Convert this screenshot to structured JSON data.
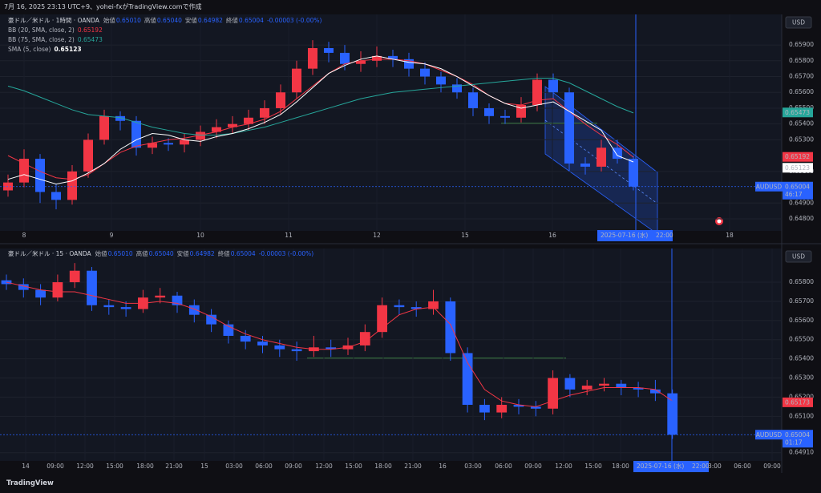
{
  "header": {
    "text": "7月 16, 2025 23:13 UTC+9、yohei-fxがTradingView.comで作成"
  },
  "footer": {
    "brand": "TradingView"
  },
  "chart_data": [
    {
      "type": "candlestick",
      "title": "豪ドル／米ドル · 1時間 · OANDA",
      "legend_values": [
        [
          "始値",
          "0.65010"
        ],
        [
          "高値",
          "0.65040"
        ],
        [
          "安値",
          "0.64982"
        ],
        [
          "終値",
          "0.65004"
        ]
      ],
      "change": "-0.00003 (-0.00%)",
      "currency": "USD",
      "up_color": "#f23645",
      "down_color": "#2962ff",
      "x_labels": [
        "8",
        "9",
        "10",
        "11",
        "12",
        "15",
        "16",
        "18"
      ],
      "ylim": [
        0.64724,
        0.66093
      ],
      "yticks": [
        {
          "value": 0.648,
          "label": "0.64800"
        },
        {
          "value": 0.649,
          "label": "0.64900"
        },
        {
          "value": 0.651,
          "label": "0.65100"
        },
        {
          "value": 0.653,
          "label": "0.65300"
        },
        {
          "value": 0.654,
          "label": "0.65400"
        },
        {
          "value": 0.655,
          "label": "0.65500"
        },
        {
          "value": 0.656,
          "label": "0.65600"
        },
        {
          "value": 0.657,
          "label": "0.65700"
        },
        {
          "value": 0.658,
          "label": "0.65800"
        },
        {
          "value": 0.659,
          "label": "0.65900"
        }
      ],
      "open": [
        0.6498,
        0.6503,
        0.6518,
        0.6497,
        0.6492,
        0.651,
        0.653,
        0.6545,
        0.6542,
        0.6525,
        0.6528,
        0.6527,
        0.653,
        0.6535,
        0.6538,
        0.654,
        0.6544,
        0.655,
        0.656,
        0.6575,
        0.6588,
        0.6585,
        0.6578,
        0.658,
        0.6583,
        0.6581,
        0.6575,
        0.657,
        0.6565,
        0.656,
        0.655,
        0.6545,
        0.6544,
        0.6552,
        0.6568,
        0.656,
        0.6515,
        0.6513,
        0.6525,
        0.6518
      ],
      "high": [
        0.6508,
        0.6524,
        0.6521,
        0.6502,
        0.6514,
        0.6534,
        0.6549,
        0.6548,
        0.6545,
        0.6532,
        0.6531,
        0.6534,
        0.6539,
        0.6543,
        0.6545,
        0.6549,
        0.6555,
        0.6565,
        0.658,
        0.6593,
        0.6592,
        0.659,
        0.6586,
        0.6589,
        0.6587,
        0.6585,
        0.6579,
        0.6573,
        0.6569,
        0.6563,
        0.6553,
        0.6549,
        0.6557,
        0.6572,
        0.6572,
        0.6563,
        0.6519,
        0.653,
        0.653,
        0.652
      ],
      "low": [
        0.6494,
        0.65,
        0.649,
        0.6486,
        0.6489,
        0.6506,
        0.6527,
        0.6536,
        0.652,
        0.6521,
        0.6523,
        0.6522,
        0.6526,
        0.6531,
        0.6534,
        0.6536,
        0.654,
        0.6546,
        0.6556,
        0.6571,
        0.6579,
        0.6574,
        0.6573,
        0.6576,
        0.6576,
        0.657,
        0.6565,
        0.656,
        0.6556,
        0.6545,
        0.654,
        0.654,
        0.6541,
        0.6548,
        0.6556,
        0.651,
        0.6508,
        0.651,
        0.6515,
        0.6498
      ],
      "close": [
        0.6503,
        0.6518,
        0.6497,
        0.6492,
        0.651,
        0.653,
        0.6545,
        0.6542,
        0.6525,
        0.6528,
        0.6527,
        0.653,
        0.6535,
        0.6538,
        0.654,
        0.6544,
        0.655,
        0.656,
        0.6575,
        0.6588,
        0.6585,
        0.6578,
        0.658,
        0.6583,
        0.6581,
        0.6575,
        0.657,
        0.6565,
        0.656,
        0.655,
        0.6545,
        0.6544,
        0.6552,
        0.6568,
        0.656,
        0.6515,
        0.6513,
        0.6525,
        0.6518,
        0.65004
      ],
      "series": [
        {
          "name": "BB (20, SMA, close, 2)",
          "color": "#f23645",
          "last_value": 0.65192,
          "values": [
            0.652,
            0.6515,
            0.651,
            0.6506,
            0.6505,
            0.6508,
            0.6515,
            0.6522,
            0.6526,
            0.6528,
            0.653,
            0.6531,
            0.6533,
            0.6535,
            0.6538,
            0.654,
            0.6543,
            0.6548,
            0.6556,
            0.6564,
            0.6572,
            0.6578,
            0.658,
            0.6581,
            0.6581,
            0.658,
            0.6578,
            0.6574,
            0.657,
            0.6565,
            0.6558,
            0.6553,
            0.6552,
            0.6555,
            0.6556,
            0.6548,
            0.654,
            0.6533,
            0.6527,
            0.6519
          ]
        },
        {
          "name": "BB (75, SMA, close, 2)",
          "color": "#26a69a",
          "last_value": 0.65473,
          "values": [
            0.6564,
            0.6561,
            0.6557,
            0.6553,
            0.6549,
            0.6546,
            0.6545,
            0.6544,
            0.6541,
            0.6538,
            0.6536,
            0.6534,
            0.6533,
            0.6533,
            0.6534,
            0.6536,
            0.6538,
            0.6541,
            0.6544,
            0.6547,
            0.655,
            0.6553,
            0.6556,
            0.6558,
            0.656,
            0.6561,
            0.6562,
            0.6563,
            0.6564,
            0.6565,
            0.6566,
            0.6567,
            0.6568,
            0.6569,
            0.6569,
            0.6566,
            0.6561,
            0.6556,
            0.6551,
            0.6547
          ]
        },
        {
          "name": "SMA (5, close)",
          "color": "#ffffff",
          "last_value": 0.65123,
          "values": [
            0.6505,
            0.6508,
            0.6505,
            0.6502,
            0.6504,
            0.6509,
            0.6515,
            0.6524,
            0.653,
            0.6534,
            0.6533,
            0.653,
            0.6529,
            0.6532,
            0.6534,
            0.6537,
            0.6541,
            0.6546,
            0.6554,
            0.6563,
            0.6572,
            0.6577,
            0.6581,
            0.6583,
            0.6581,
            0.6579,
            0.6578,
            0.6575,
            0.657,
            0.6564,
            0.6558,
            0.6553,
            0.655,
            0.6552,
            0.6554,
            0.6548,
            0.6542,
            0.6536,
            0.652,
            0.6516
          ]
        }
      ],
      "last": {
        "symbol": "AUDUSD",
        "value": 0.65004,
        "countdown": "46:17"
      },
      "crosshair_label": [
        "2025-07-16 (水)",
        "22:00"
      ]
    },
    {
      "type": "candlestick",
      "title": "豪ドル／米ドル · 15 · OANDA",
      "legend_values": [
        [
          "始値",
          "0.65010"
        ],
        [
          "高値",
          "0.65040"
        ],
        [
          "安値",
          "0.64982"
        ],
        [
          "終値",
          "0.65004"
        ]
      ],
      "change": "-0.00003 (-0.00%)",
      "currency": "USD",
      "up_color": "#f23645",
      "down_color": "#2962ff",
      "x_labels": [
        "14",
        "09:00",
        "12:00",
        "15:00",
        "18:00",
        "21:00",
        "15",
        "03:00",
        "06:00",
        "09:00",
        "12:00",
        "15:00",
        "18:00",
        "21:00",
        "16",
        "03:00",
        "06:00",
        "09:00",
        "12:00",
        "15:00",
        "18:00",
        "03:00",
        "06:00",
        "09:00"
      ],
      "ylim": [
        0.64867,
        0.65976
      ],
      "yticks": [
        {
          "value": 0.6491,
          "label": "0.64910"
        },
        {
          "value": 0.651,
          "label": "0.65100"
        },
        {
          "value": 0.652,
          "label": "0.65200"
        },
        {
          "value": 0.653,
          "label": "0.65300"
        },
        {
          "value": 0.654,
          "label": "0.65400"
        },
        {
          "value": 0.655,
          "label": "0.65500"
        },
        {
          "value": 0.656,
          "label": "0.65600"
        },
        {
          "value": 0.657,
          "label": "0.65700"
        },
        {
          "value": 0.658,
          "label": "0.65800"
        }
      ],
      "open": [
        0.6581,
        0.6579,
        0.6576,
        0.6572,
        0.658,
        0.6586,
        0.6568,
        0.6567,
        0.6566,
        0.6572,
        0.6573,
        0.6568,
        0.6563,
        0.6558,
        0.6552,
        0.6549,
        0.6547,
        0.6545,
        0.6544,
        0.6546,
        0.6545,
        0.6547,
        0.6554,
        0.6568,
        0.6567,
        0.6566,
        0.657,
        0.6543,
        0.6516,
        0.6512,
        0.6516,
        0.6515,
        0.6514,
        0.653,
        0.6524,
        0.6526,
        0.6527,
        0.6525,
        0.6524,
        0.6522
      ],
      "high": [
        0.6584,
        0.6582,
        0.6579,
        0.6584,
        0.659,
        0.6588,
        0.6571,
        0.657,
        0.6576,
        0.6577,
        0.6575,
        0.6571,
        0.6566,
        0.656,
        0.6555,
        0.6552,
        0.655,
        0.6549,
        0.6552,
        0.655,
        0.6551,
        0.6558,
        0.6572,
        0.6571,
        0.657,
        0.6576,
        0.6572,
        0.6546,
        0.6519,
        0.652,
        0.6519,
        0.6518,
        0.6534,
        0.6532,
        0.6529,
        0.653,
        0.6529,
        0.6528,
        0.6529,
        0.6524
      ],
      "low": [
        0.6576,
        0.6572,
        0.6568,
        0.657,
        0.6577,
        0.6565,
        0.6563,
        0.6562,
        0.6564,
        0.6569,
        0.6564,
        0.6559,
        0.6554,
        0.6548,
        0.6545,
        0.6543,
        0.6541,
        0.6539,
        0.6541,
        0.6541,
        0.6542,
        0.6544,
        0.6551,
        0.6563,
        0.6562,
        0.6563,
        0.6539,
        0.6512,
        0.6508,
        0.6509,
        0.6511,
        0.651,
        0.6511,
        0.652,
        0.6521,
        0.6523,
        0.6521,
        0.652,
        0.6518,
        0.64982
      ],
      "close": [
        0.6579,
        0.6576,
        0.6572,
        0.658,
        0.6586,
        0.6568,
        0.6567,
        0.6566,
        0.6572,
        0.6573,
        0.6568,
        0.6563,
        0.6558,
        0.6552,
        0.6549,
        0.6547,
        0.6545,
        0.6544,
        0.6546,
        0.6545,
        0.6547,
        0.6554,
        0.6568,
        0.6567,
        0.6566,
        0.657,
        0.6543,
        0.6516,
        0.6512,
        0.6516,
        0.6515,
        0.6514,
        0.653,
        0.6524,
        0.6526,
        0.6527,
        0.6525,
        0.6524,
        0.6522,
        0.65004
      ],
      "series": [
        {
          "color": "#f23645",
          "last_value": 0.65173,
          "values": [
            0.658,
            0.6578,
            0.6576,
            0.6575,
            0.6575,
            0.6573,
            0.6571,
            0.6569,
            0.6569,
            0.657,
            0.6569,
            0.6566,
            0.6562,
            0.6557,
            0.6553,
            0.655,
            0.6548,
            0.6546,
            0.6545,
            0.6545,
            0.6546,
            0.6549,
            0.6556,
            0.6563,
            0.6566,
            0.6567,
            0.6558,
            0.6538,
            0.6524,
            0.6518,
            0.6516,
            0.6515,
            0.6518,
            0.6521,
            0.6523,
            0.6525,
            0.6525,
            0.6525,
            0.6524,
            0.6518
          ]
        }
      ],
      "last": {
        "symbol": "AUDUSD",
        "value": 0.65004,
        "countdown": "01:17"
      },
      "crosshair_label": [
        "2025-07-16 (水)",
        "22:00"
      ]
    }
  ]
}
